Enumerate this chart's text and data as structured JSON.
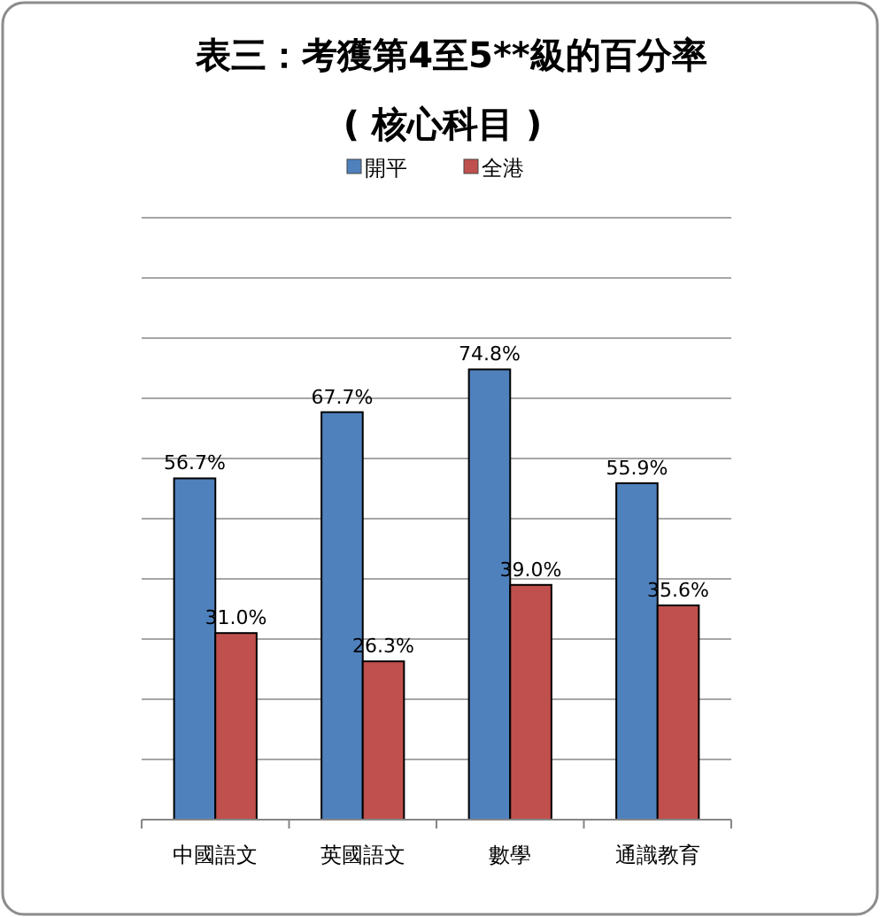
{
  "chart_data": {
    "type": "bar",
    "title": "表三：考獲第4至5**級的百分率",
    "subtitle": "( 核心科目 )",
    "categories": [
      "中國語文",
      "英國語文",
      "數學",
      "通識教育"
    ],
    "series": [
      {
        "name": "開平",
        "color": "#4f81bd",
        "values": [
          56.7,
          67.7,
          74.8,
          55.9
        ],
        "value_labels": [
          "56.7%",
          "67.7%",
          "74.8%",
          "55.9%"
        ]
      },
      {
        "name": "全港",
        "color": "#c0504d",
        "values": [
          31.0,
          26.3,
          39.0,
          35.6
        ],
        "value_labels": [
          "31.0%",
          "26.3%",
          "39.0%",
          "35.6%"
        ]
      }
    ],
    "ylim": [
      0,
      100
    ],
    "yticks": [
      {
        "value": 0,
        "label": null
      },
      {
        "value": 10,
        "label": null
      },
      {
        "value": 20,
        "label": null
      },
      {
        "value": 30,
        "label": null
      },
      {
        "value": 40,
        "label": null
      },
      {
        "value": 50,
        "label": null
      },
      {
        "value": 60,
        "label": null
      },
      {
        "value": 70,
        "label": null
      },
      {
        "value": 80,
        "label": null
      },
      {
        "value": 90,
        "label": null
      },
      {
        "value": 100,
        "label": null
      }
    ],
    "grid": "y",
    "legend": "top",
    "tick_labels": "x"
  }
}
